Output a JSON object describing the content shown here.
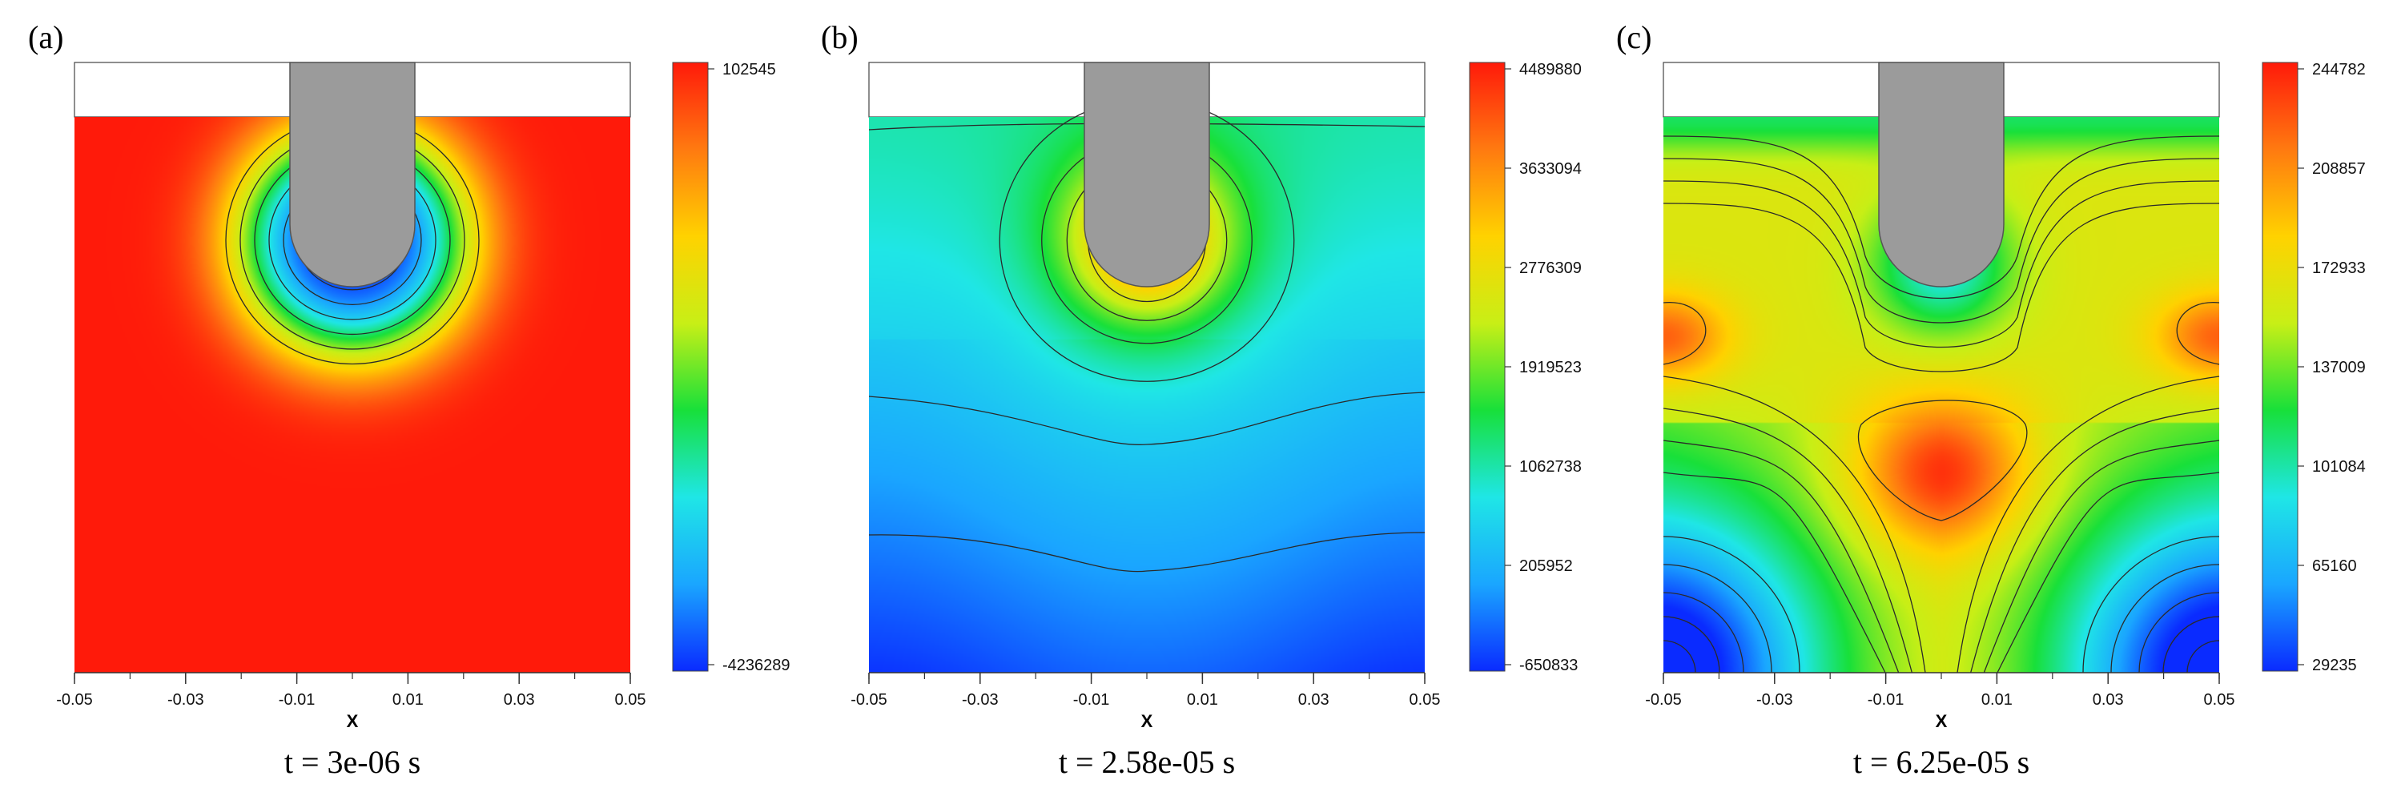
{
  "colormap": {
    "stops": [
      "#0a2bff",
      "#1aa6ff",
      "#1fe6e6",
      "#18e03a",
      "#c8ef16",
      "#ffd200",
      "#ff7a10",
      "#ff1a0a"
    ]
  },
  "chart_data": [
    {
      "type": "heatmap",
      "panel_label": "(a)",
      "title": "t = 3e-06 s",
      "xlabel": "X",
      "x_ticks": [
        -0.05,
        -0.03,
        -0.01,
        0.01,
        0.03,
        0.05
      ],
      "x_tick_labels": [
        "-0.05",
        "-0.03",
        "-0.01",
        "0.01",
        "0.03",
        "0.05"
      ],
      "xlim": [
        -0.05,
        0.05
      ],
      "colorbar": {
        "min": -4236289,
        "max": 102545,
        "tick_labels": [
          "102545",
          "-4236289"
        ]
      },
      "field": "uniform maximum with strong minimum at probe tip (0, -0.035)"
    },
    {
      "type": "heatmap",
      "panel_label": "(b)",
      "title": "t = 2.58e-05 s",
      "xlabel": "X",
      "x_ticks": [
        -0.05,
        -0.03,
        -0.01,
        0.01,
        0.03,
        0.05
      ],
      "x_tick_labels": [
        "-0.05",
        "-0.03",
        "-0.01",
        "0.01",
        "0.03",
        "0.05"
      ],
      "xlim": [
        -0.05,
        0.05
      ],
      "colorbar": {
        "min": -650833,
        "max": 4489880,
        "tick_labels": [
          "4489880",
          "3633094",
          "2776309",
          "1919523",
          "1062738",
          "205952",
          "-650833"
        ]
      },
      "field": "maximum at probe tip, decreasing with depth to minimum at bottom"
    },
    {
      "type": "heatmap",
      "panel_label": "(c)",
      "title": "t = 6.25e-05 s",
      "xlabel": "X",
      "x_ticks": [
        -0.05,
        -0.03,
        -0.01,
        0.01,
        0.03,
        0.05
      ],
      "x_tick_labels": [
        "-0.05",
        "-0.03",
        "-0.01",
        "0.01",
        "0.03",
        "0.05"
      ],
      "xlim": [
        -0.05,
        0.05
      ],
      "colorbar": {
        "min": 29235,
        "max": 244782,
        "tick_labels": [
          "244782",
          "208857",
          "172933",
          "137009",
          "101084",
          "65160",
          "29235"
        ]
      },
      "field": "maxima at center and side walls, minima at bottom corners and near probe tip"
    }
  ]
}
